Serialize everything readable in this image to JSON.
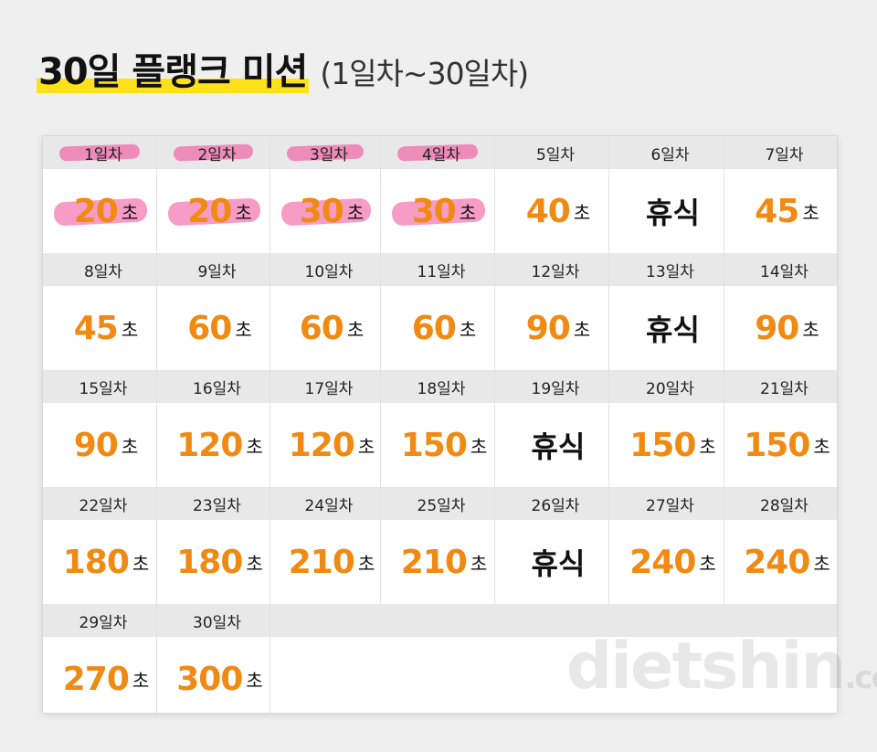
{
  "title": {
    "main": "30일 플랭크 미션",
    "sub": "(1일차~30일차)"
  },
  "unit": "초",
  "days": [
    {
      "day": "1일차",
      "value": "20",
      "rest": false,
      "highlight": true
    },
    {
      "day": "2일차",
      "value": "20",
      "rest": false,
      "highlight": true
    },
    {
      "day": "3일차",
      "value": "30",
      "rest": false,
      "highlight": true
    },
    {
      "day": "4일차",
      "value": "30",
      "rest": false,
      "highlight": true
    },
    {
      "day": "5일차",
      "value": "40",
      "rest": false,
      "highlight": false
    },
    {
      "day": "6일차",
      "value": "휴식",
      "rest": true,
      "highlight": false
    },
    {
      "day": "7일차",
      "value": "45",
      "rest": false,
      "highlight": false
    },
    {
      "day": "8일차",
      "value": "45",
      "rest": false,
      "highlight": false
    },
    {
      "day": "9일차",
      "value": "60",
      "rest": false,
      "highlight": false
    },
    {
      "day": "10일차",
      "value": "60",
      "rest": false,
      "highlight": false
    },
    {
      "day": "11일차",
      "value": "60",
      "rest": false,
      "highlight": false
    },
    {
      "day": "12일차",
      "value": "90",
      "rest": false,
      "highlight": false
    },
    {
      "day": "13일차",
      "value": "휴식",
      "rest": true,
      "highlight": false
    },
    {
      "day": "14일차",
      "value": "90",
      "rest": false,
      "highlight": false
    },
    {
      "day": "15일차",
      "value": "90",
      "rest": false,
      "highlight": false
    },
    {
      "day": "16일차",
      "value": "120",
      "rest": false,
      "highlight": false
    },
    {
      "day": "17일차",
      "value": "120",
      "rest": false,
      "highlight": false
    },
    {
      "day": "18일차",
      "value": "150",
      "rest": false,
      "highlight": false
    },
    {
      "day": "19일차",
      "value": "휴식",
      "rest": true,
      "highlight": false
    },
    {
      "day": "20일차",
      "value": "150",
      "rest": false,
      "highlight": false
    },
    {
      "day": "21일차",
      "value": "150",
      "rest": false,
      "highlight": false
    },
    {
      "day": "22일차",
      "value": "180",
      "rest": false,
      "highlight": false
    },
    {
      "day": "23일차",
      "value": "180",
      "rest": false,
      "highlight": false
    },
    {
      "day": "24일차",
      "value": "210",
      "rest": false,
      "highlight": false
    },
    {
      "day": "25일차",
      "value": "210",
      "rest": false,
      "highlight": false
    },
    {
      "day": "26일차",
      "value": "휴식",
      "rest": true,
      "highlight": false
    },
    {
      "day": "27일차",
      "value": "240",
      "rest": false,
      "highlight": false
    },
    {
      "day": "28일차",
      "value": "240",
      "rest": false,
      "highlight": false
    },
    {
      "day": "29일차",
      "value": "270",
      "rest": false,
      "highlight": false
    },
    {
      "day": "30일차",
      "value": "300",
      "rest": false,
      "highlight": false
    }
  ],
  "watermark": {
    "main": "dietshin",
    "suffix": ".com"
  },
  "colors": {
    "accent": "#f08a12",
    "highlighter": "#ffe11a",
    "marker": "#f05aa0"
  }
}
